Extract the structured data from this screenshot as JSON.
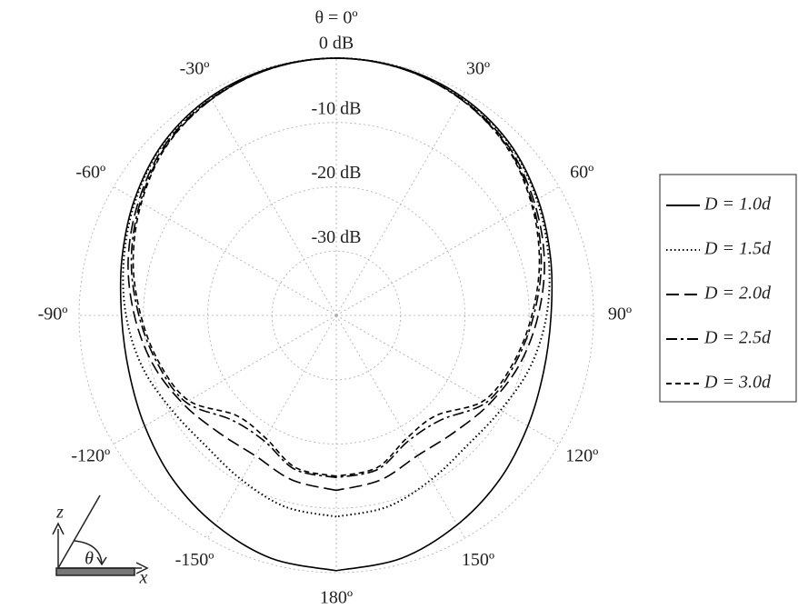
{
  "chart_data": {
    "type": "polar",
    "rlim": [
      -40,
      0
    ],
    "rticks": [
      {
        "value": 0,
        "label": "0 dB"
      },
      {
        "value": -10,
        "label": "-10 dB"
      },
      {
        "value": -20,
        "label": "-20 dB"
      },
      {
        "value": -30,
        "label": "-30 dB"
      }
    ],
    "theta_ticks": [
      {
        "value": 0,
        "label": "θ = 0º"
      },
      {
        "value": 30,
        "label": "30º"
      },
      {
        "value": 60,
        "label": "60º"
      },
      {
        "value": 90,
        "label": "90º"
      },
      {
        "value": 120,
        "label": "120º"
      },
      {
        "value": 150,
        "label": "150º"
      },
      {
        "value": 180,
        "label": "180º"
      },
      {
        "value": -150,
        "label": "-150º"
      },
      {
        "value": -120,
        "label": "-120º"
      },
      {
        "value": -90,
        "label": "-90º"
      },
      {
        "value": -60,
        "label": "-60º"
      },
      {
        "value": -30,
        "label": "-30º"
      }
    ],
    "grid": true,
    "theta": [
      -180,
      -165,
      -150,
      -135,
      -120,
      -105,
      -90,
      -75,
      -60,
      -45,
      -30,
      -15,
      0,
      15,
      30,
      45,
      60,
      75,
      90,
      105,
      120,
      135,
      150,
      165,
      180
    ],
    "series": [
      {
        "name": "D = 1.0d",
        "color": "#000000",
        "line_style": "solid",
        "values": [
          -0.3,
          -0.9,
          -2.4,
          -4,
          -5.6,
          -6.6,
          -6.6,
          -5.5,
          -3.8,
          -2,
          -0.8,
          -0.2,
          0,
          -0.2,
          -0.8,
          -2,
          -3.8,
          -5.5,
          -6.6,
          -6.6,
          -5.6,
          -4,
          -2.4,
          -0.9,
          -0.3
        ]
      },
      {
        "name": "D = 1.5d",
        "color": "#000000",
        "line_style": "dotted",
        "values": [
          -8.7,
          -9.2,
          -10.5,
          -11.3,
          -10.5,
          -8.8,
          -7.3,
          -5.8,
          -4,
          -2.1,
          -0.9,
          -0.2,
          0,
          -0.2,
          -0.9,
          -2.1,
          -4,
          -5.8,
          -7.3,
          -8.8,
          -10.5,
          -11.3,
          -10.5,
          -9.2,
          -8.7
        ]
      },
      {
        "name": "D = 2.0d",
        "color": "#000000",
        "line_style": "dashed",
        "values": [
          -12.8,
          -13.5,
          -14.8,
          -14.2,
          -12.5,
          -10.5,
          -8.6,
          -6.5,
          -4.5,
          -2.4,
          -1.1,
          -0.3,
          0,
          -0.3,
          -1.1,
          -2.4,
          -4.5,
          -6.5,
          -8.6,
          -10.5,
          -12.5,
          -14.2,
          -14.8,
          -13.5,
          -12.8
        ]
      },
      {
        "name": "D = 2.5d",
        "color": "#000000",
        "line_style": "dashdot",
        "values": [
          -14.8,
          -15.2,
          -17.5,
          -17,
          -13,
          -11.2,
          -9.3,
          -7,
          -4.8,
          -2.6,
          -1.2,
          -0.3,
          0,
          -0.3,
          -1.2,
          -2.6,
          -4.8,
          -7,
          -9.3,
          -11.2,
          -13,
          -17,
          -17.5,
          -15.2,
          -14.8
        ]
      },
      {
        "name": "D = 3.0d",
        "color": "#000000",
        "line_style": "shortdash",
        "values": [
          -15,
          -15.5,
          -18,
          -18,
          -13.5,
          -11.5,
          -9.6,
          -7.3,
          -5,
          -2.7,
          -1.2,
          -0.3,
          0,
          -0.3,
          -1.2,
          -2.7,
          -5,
          -7.3,
          -9.6,
          -11.5,
          -13.5,
          -18,
          -18,
          -15.5,
          -15
        ]
      }
    ],
    "legend": "right",
    "inset_labels": [
      "z",
      "x",
      "θ"
    ]
  }
}
